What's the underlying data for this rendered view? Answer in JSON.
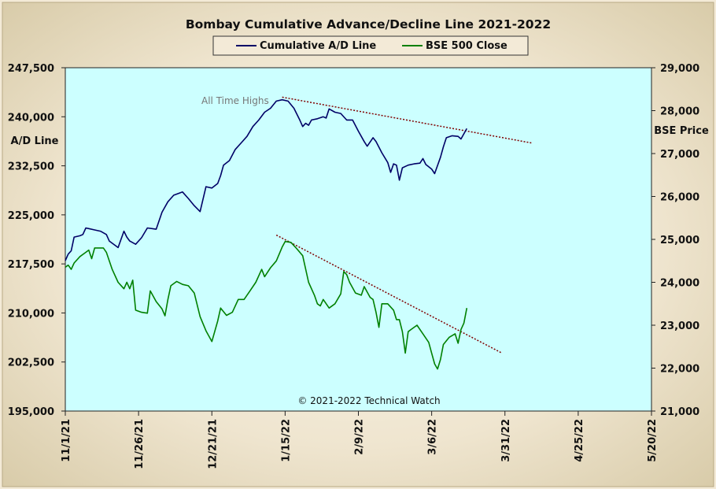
{
  "chart_data": {
    "type": "line",
    "title": "Bombay Cumulative Advance/Decline Line 2021-2022",
    "ylabel_left": "A/D Line",
    "ylabel_right": "BSE Price",
    "annotation": "All Time Highs",
    "copyright": "© 2021-2022  Technical Watch",
    "legend_position": "top",
    "grid": false,
    "colors": {
      "plot_background": "#ccffff",
      "ad_line": "#000066",
      "bse_line": "#008000",
      "trendline": "#800000"
    },
    "x_tick_labels": [
      "11/1/21",
      "11/26/21",
      "12/21/21",
      "1/15/22",
      "2/9/22",
      "3/6/22",
      "3/31/22",
      "4/25/22",
      "5/20/22"
    ],
    "x_range_days": [
      0,
      200
    ],
    "y_left": {
      "range": [
        195000,
        247500
      ],
      "ticks": [
        195000,
        202500,
        210000,
        217500,
        225000,
        232500,
        240000,
        247500
      ],
      "tick_labels": [
        "195,000",
        "202,500",
        "210,000",
        "217,500",
        "225,000",
        "232,500",
        "240,000",
        "247,500"
      ]
    },
    "y_right": {
      "range": [
        21000,
        29000
      ],
      "ticks": [
        21000,
        22000,
        23000,
        24000,
        25000,
        26000,
        27000,
        28000,
        29000
      ],
      "tick_labels": [
        "21,000",
        "22,000",
        "23,000",
        "24,000",
        "25,000",
        "26,000",
        "27,000",
        "28,000",
        "29,000"
      ]
    },
    "series": [
      {
        "name": "Cumulative A/D Line",
        "axis": "left",
        "points": [
          [
            0,
            218000
          ],
          [
            1,
            219000
          ],
          [
            2,
            219500
          ],
          [
            3,
            221600
          ],
          [
            5,
            221800
          ],
          [
            6,
            222000
          ],
          [
            7,
            223000
          ],
          [
            8,
            222900
          ],
          [
            10,
            222700
          ],
          [
            12,
            222500
          ],
          [
            14,
            222000
          ],
          [
            15,
            221000
          ],
          [
            18,
            220000
          ],
          [
            20,
            222500
          ],
          [
            21,
            221600
          ],
          [
            22,
            221000
          ],
          [
            24,
            220500
          ],
          [
            26,
            221500
          ],
          [
            28,
            223000
          ],
          [
            31,
            222800
          ],
          [
            33,
            225400
          ],
          [
            35,
            227000
          ],
          [
            37,
            228000
          ],
          [
            40,
            228500
          ],
          [
            42,
            227500
          ],
          [
            44,
            226400
          ],
          [
            46,
            225500
          ],
          [
            48,
            229300
          ],
          [
            50,
            229100
          ],
          [
            52,
            229800
          ],
          [
            53,
            231000
          ],
          [
            54,
            232600
          ],
          [
            56,
            233300
          ],
          [
            58,
            235000
          ],
          [
            60,
            236000
          ],
          [
            62,
            237000
          ],
          [
            64,
            238500
          ],
          [
            66,
            239500
          ],
          [
            68,
            240700
          ],
          [
            70,
            241300
          ],
          [
            72,
            242400
          ],
          [
            74,
            242600
          ],
          [
            76,
            242400
          ],
          [
            78,
            241300
          ],
          [
            80,
            239500
          ],
          [
            81,
            238500
          ],
          [
            82,
            239000
          ],
          [
            83,
            238700
          ],
          [
            84,
            239500
          ],
          [
            86,
            239700
          ],
          [
            88,
            240000
          ],
          [
            89,
            239800
          ],
          [
            90,
            241200
          ],
          [
            92,
            240700
          ],
          [
            94,
            240500
          ],
          [
            96,
            239500
          ],
          [
            98,
            239500
          ],
          [
            100,
            237800
          ],
          [
            102,
            236200
          ],
          [
            103,
            235500
          ],
          [
            105,
            236800
          ],
          [
            106,
            236200
          ],
          [
            108,
            234500
          ],
          [
            110,
            233000
          ],
          [
            111,
            231500
          ],
          [
            112,
            232800
          ],
          [
            113,
            232600
          ],
          [
            114,
            230300
          ],
          [
            115,
            232200
          ],
          [
            117,
            232600
          ],
          [
            119,
            232800
          ],
          [
            121,
            232900
          ],
          [
            122,
            233600
          ],
          [
            123,
            232700
          ],
          [
            125,
            232000
          ],
          [
            126,
            231300
          ],
          [
            128,
            233800
          ],
          [
            129,
            235400
          ],
          [
            130,
            236800
          ],
          [
            132,
            237100
          ],
          [
            134,
            237000
          ],
          [
            135,
            236600
          ],
          [
            136,
            237400
          ],
          [
            137,
            238200
          ]
        ]
      },
      {
        "name": "BSE 500 Close",
        "axis": "right",
        "points": [
          [
            0,
            24350
          ],
          [
            1,
            24400
          ],
          [
            2,
            24300
          ],
          [
            3,
            24450
          ],
          [
            5,
            24600
          ],
          [
            7,
            24700
          ],
          [
            8,
            24750
          ],
          [
            9,
            24550
          ],
          [
            10,
            24800
          ],
          [
            12,
            24800
          ],
          [
            13,
            24800
          ],
          [
            14,
            24700
          ],
          [
            16,
            24300
          ],
          [
            18,
            24000
          ],
          [
            20,
            23850
          ],
          [
            21,
            24000
          ],
          [
            22,
            23850
          ],
          [
            23,
            24050
          ],
          [
            24,
            23350
          ],
          [
            26,
            23300
          ],
          [
            28,
            23280
          ],
          [
            29,
            23800
          ],
          [
            31,
            23550
          ],
          [
            33,
            23380
          ],
          [
            34,
            23220
          ],
          [
            35,
            23600
          ],
          [
            36,
            23920
          ],
          [
            38,
            24020
          ],
          [
            40,
            23950
          ],
          [
            42,
            23920
          ],
          [
            44,
            23750
          ],
          [
            46,
            23200
          ],
          [
            48,
            22870
          ],
          [
            50,
            22620
          ],
          [
            52,
            23100
          ],
          [
            53,
            23400
          ],
          [
            55,
            23230
          ],
          [
            57,
            23300
          ],
          [
            59,
            23600
          ],
          [
            61,
            23600
          ],
          [
            63,
            23800
          ],
          [
            65,
            24000
          ],
          [
            67,
            24300
          ],
          [
            68,
            24130
          ],
          [
            70,
            24340
          ],
          [
            72,
            24500
          ],
          [
            74,
            24820
          ],
          [
            75,
            24950
          ],
          [
            77,
            24930
          ],
          [
            79,
            24780
          ],
          [
            81,
            24620
          ],
          [
            83,
            24000
          ],
          [
            85,
            23700
          ],
          [
            86,
            23500
          ],
          [
            87,
            23450
          ],
          [
            88,
            23600
          ],
          [
            90,
            23400
          ],
          [
            92,
            23500
          ],
          [
            94,
            23730
          ],
          [
            95,
            24250
          ],
          [
            96,
            24180
          ],
          [
            97,
            24000
          ],
          [
            99,
            23750
          ],
          [
            101,
            23700
          ],
          [
            102,
            23900
          ],
          [
            104,
            23650
          ],
          [
            105,
            23600
          ],
          [
            106,
            23300
          ],
          [
            107,
            22950
          ],
          [
            108,
            23500
          ],
          [
            110,
            23500
          ],
          [
            112,
            23350
          ],
          [
            113,
            23130
          ],
          [
            114,
            23130
          ],
          [
            115,
            22850
          ],
          [
            116,
            22350
          ],
          [
            117,
            22850
          ],
          [
            118,
            22900
          ],
          [
            120,
            23000
          ],
          [
            122,
            22800
          ],
          [
            124,
            22600
          ],
          [
            125,
            22350
          ],
          [
            126,
            22100
          ],
          [
            127,
            21980
          ],
          [
            128,
            22200
          ],
          [
            129,
            22550
          ],
          [
            131,
            22720
          ],
          [
            133,
            22800
          ],
          [
            134,
            22580
          ],
          [
            135,
            22900
          ],
          [
            136,
            23050
          ],
          [
            137,
            23400
          ]
        ]
      }
    ],
    "trendlines": [
      {
        "axis": "left",
        "points": [
          [
            74,
            243000
          ],
          [
            159,
            236000
          ]
        ]
      },
      {
        "axis": "right",
        "points": [
          [
            72,
            25100
          ],
          [
            149,
            22350
          ]
        ]
      }
    ]
  }
}
